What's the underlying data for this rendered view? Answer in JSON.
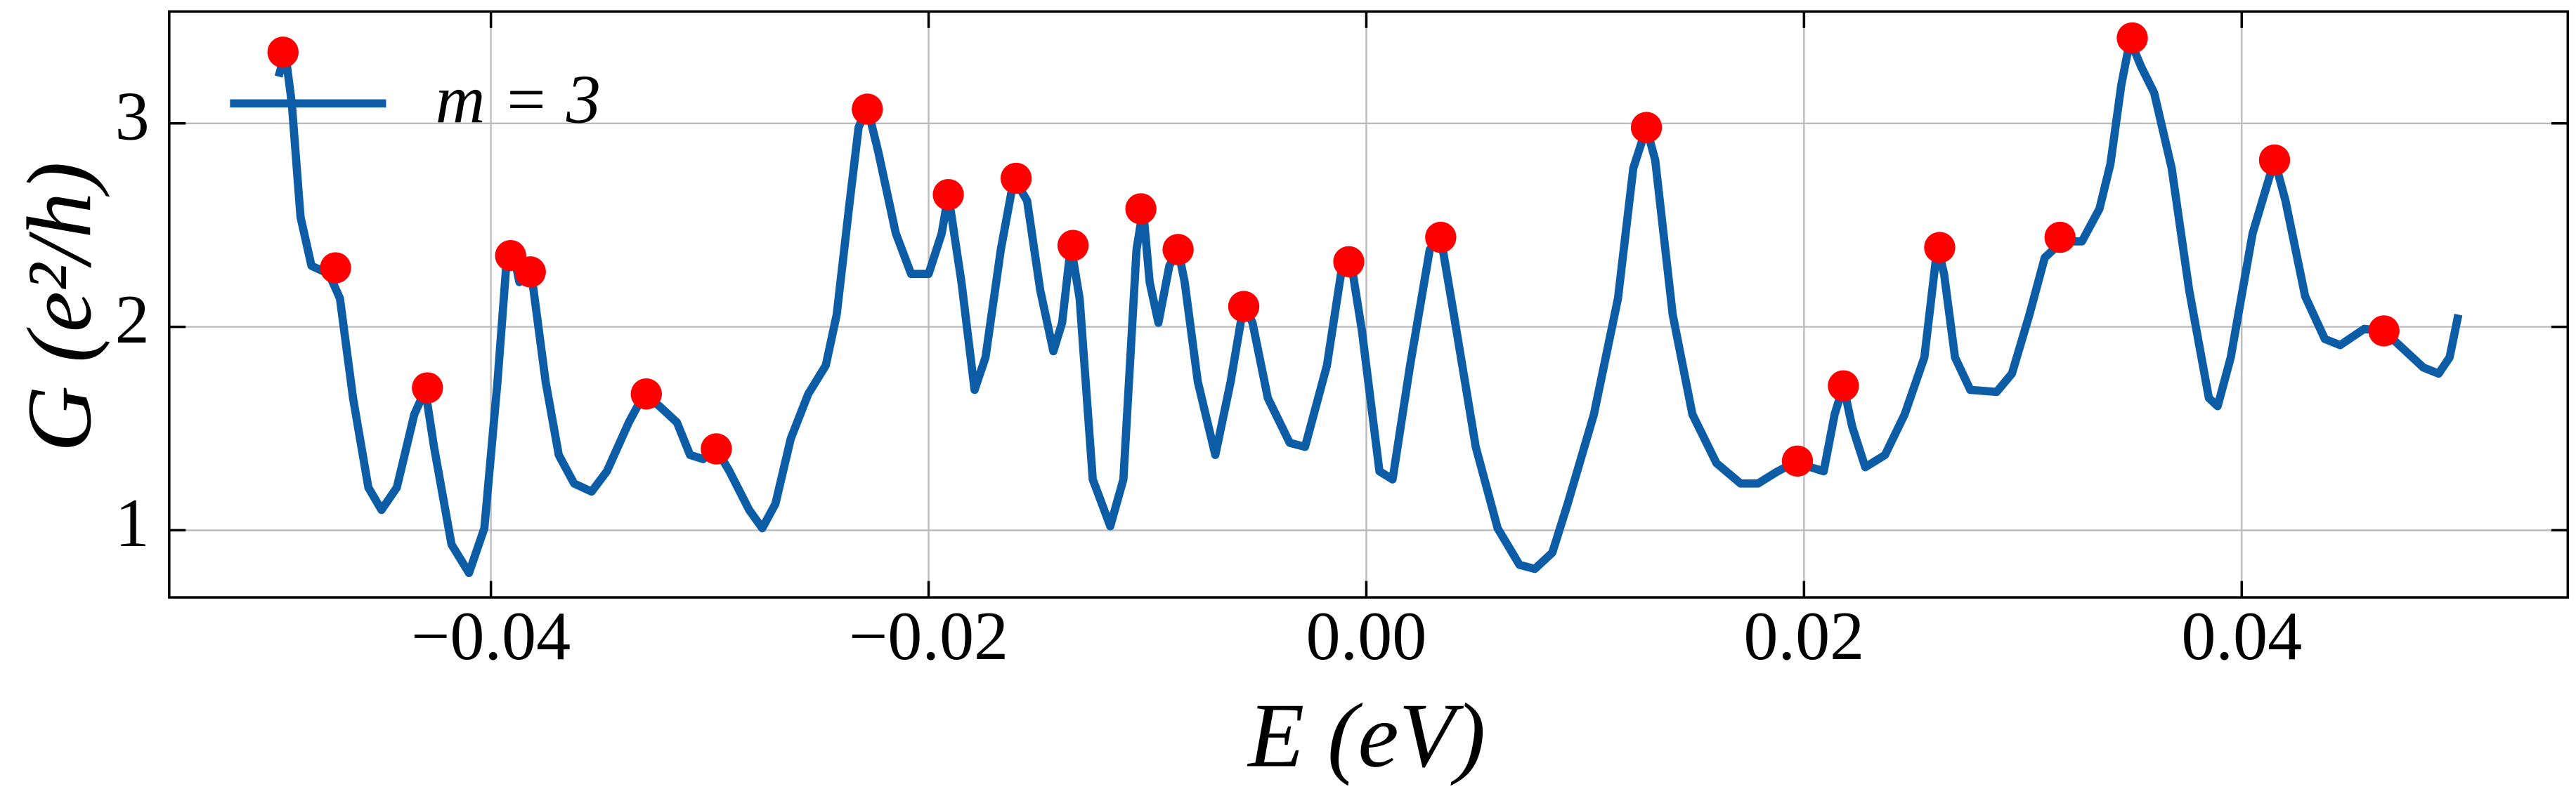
{
  "chart_data": {
    "type": "line",
    "xlabel": "E (eV)",
    "ylabel": "G (e²/h)",
    "xlim": [
      -0.0547,
      0.0549
    ],
    "ylim": [
      0.67,
      3.55
    ],
    "xticks": [
      {
        "value": -0.04,
        "label": "−0.04"
      },
      {
        "value": -0.02,
        "label": "−0.02"
      },
      {
        "value": 0,
        "label": "0.00"
      },
      {
        "value": 0.02,
        "label": "0.02"
      },
      {
        "value": 0.04,
        "label": "0.04"
      }
    ],
    "yticks": [
      1,
      2,
      3
    ],
    "grid": true,
    "legend": "upper left",
    "series": [
      {
        "name": "m = 3",
        "color": "#0c5da5",
        "x": [
          -0.0497,
          -0.0494,
          -0.0491,
          -0.0487,
          -0.0482,
          -0.0474,
          -0.0469,
          -0.0463,
          -0.0456,
          -0.045,
          -0.0443,
          -0.0435,
          -0.043,
          -0.0426,
          -0.0418,
          -0.041,
          -0.0403,
          -0.0397,
          -0.0393,
          -0.039,
          -0.0387,
          -0.0384,
          -0.0381,
          -0.0375,
          -0.0369,
          -0.0362,
          -0.0354,
          -0.0347,
          -0.0337,
          -0.033,
          -0.0323,
          -0.0315,
          -0.0309,
          -0.0303,
          -0.0297,
          -0.0291,
          -0.0282,
          -0.0276,
          -0.027,
          -0.0263,
          -0.0255,
          -0.0247,
          -0.0242,
          -0.0236,
          -0.0232,
          -0.0228,
          -0.0223,
          -0.0215,
          -0.0208,
          -0.02,
          -0.0194,
          -0.0191,
          -0.0185,
          -0.0179,
          -0.0174,
          -0.0167,
          -0.0161,
          -0.0155,
          -0.0149,
          -0.0143,
          -0.0139,
          -0.0135,
          -0.0131,
          -0.0125,
          -0.0117,
          -0.0111,
          -0.0105,
          -0.0102,
          -0.0099,
          -0.0095,
          -0.009,
          -0.0086,
          -0.0083,
          -0.0077,
          -0.0069,
          -0.0062,
          -0.0056,
          -0.0052,
          -0.0045,
          -0.0035,
          -0.0028,
          -0.0018,
          -0.0011,
          -0.0007,
          -0.0002,
          0.0006,
          0.0012,
          0.002,
          0.0029,
          0.0034,
          0.004,
          0.005,
          0.006,
          0.007,
          0.0077,
          0.0085,
          0.0092,
          0.0104,
          0.0115,
          0.0122,
          0.0128,
          0.0132,
          0.014,
          0.0149,
          0.016,
          0.0171,
          0.0179,
          0.0188,
          0.0197,
          0.0203,
          0.0209,
          0.0214,
          0.0218,
          0.0222,
          0.0228,
          0.0237,
          0.0246,
          0.0255,
          0.0261,
          0.0264,
          0.0269,
          0.0276,
          0.0288,
          0.0295,
          0.0303,
          0.031,
          0.0318,
          0.0327,
          0.0335,
          0.034,
          0.0345,
          0.0349,
          0.0354,
          0.036,
          0.0368,
          0.0376,
          0.0385,
          0.0389,
          0.0395,
          0.0405,
          0.0415,
          0.042,
          0.0429,
          0.0438,
          0.0445,
          0.0456,
          0.0465,
          0.0473,
          0.0483,
          0.049,
          0.0495,
          0.0499
        ],
        "values": [
          3.23,
          3.35,
          3.1,
          2.54,
          2.3,
          2.26,
          2.14,
          1.65,
          1.21,
          1.1,
          1.21,
          1.57,
          1.69,
          1.41,
          0.93,
          0.79,
          1.01,
          1.73,
          2.3,
          2.38,
          2.22,
          2.26,
          2.22,
          1.73,
          1.37,
          1.23,
          1.19,
          1.29,
          1.53,
          1.67,
          1.61,
          1.53,
          1.37,
          1.35,
          1.4,
          1.29,
          1.1,
          1.01,
          1.13,
          1.45,
          1.67,
          1.81,
          2.06,
          2.62,
          2.98,
          3.08,
          2.86,
          2.46,
          2.26,
          2.26,
          2.46,
          2.65,
          2.22,
          1.69,
          1.85,
          2.38,
          2.73,
          2.62,
          2.18,
          1.88,
          2.02,
          2.4,
          2.14,
          1.25,
          1.02,
          1.25,
          2.38,
          2.58,
          2.22,
          2.02,
          2.3,
          2.38,
          2.22,
          1.73,
          1.37,
          1.73,
          2.11,
          2.02,
          1.65,
          1.43,
          1.41,
          1.81,
          2.3,
          2.32,
          1.98,
          1.29,
          1.25,
          1.81,
          2.38,
          2.44,
          2.06,
          1.41,
          1.01,
          0.83,
          0.81,
          0.89,
          1.13,
          1.57,
          2.14,
          2.78,
          2.98,
          2.82,
          2.06,
          1.57,
          1.33,
          1.23,
          1.23,
          1.29,
          1.34,
          1.31,
          1.29,
          1.57,
          1.71,
          1.51,
          1.31,
          1.37,
          1.57,
          1.85,
          2.4,
          2.26,
          1.85,
          1.69,
          1.68,
          1.77,
          2.06,
          2.34,
          2.42,
          2.42,
          2.58,
          2.8,
          3.19,
          3.41,
          3.28,
          3.15,
          2.78,
          2.18,
          1.65,
          1.61,
          1.85,
          2.46,
          2.82,
          2.62,
          2.15,
          1.94,
          1.91,
          1.99,
          1.98,
          1.9,
          1.8,
          1.77,
          1.85,
          2.06
        ]
      },
      {
        "type": "scatter",
        "color": "#ff0000",
        "x": [
          -0.0495,
          -0.0471,
          -0.0429,
          -0.0391,
          -0.0382,
          -0.0329,
          -0.0297,
          -0.0228,
          -0.0191,
          -0.016,
          -0.0134,
          -0.0103,
          -0.0086,
          -0.0056,
          -0.0008,
          0.0034,
          0.0128,
          0.0197,
          0.0218,
          0.0262,
          0.0317,
          0.035,
          0.0415,
          0.0465
        ],
        "values": [
          3.35,
          2.29,
          1.7,
          2.35,
          2.27,
          1.67,
          1.4,
          3.07,
          2.65,
          2.73,
          2.4,
          2.58,
          2.38,
          2.1,
          2.32,
          2.44,
          2.98,
          1.34,
          1.71,
          2.39,
          2.44,
          3.42,
          2.82,
          1.98
        ]
      }
    ]
  }
}
